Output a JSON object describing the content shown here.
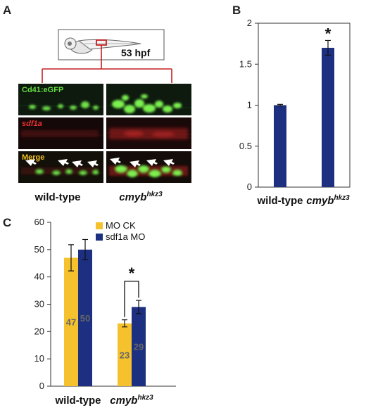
{
  "panel_a": {
    "label": "A",
    "stage": "53 hpf",
    "rows": [
      {
        "label": "Cd41:eGFP",
        "color": "#66dd44",
        "italic": false
      },
      {
        "label": "sdf1a",
        "color": "#ee3030",
        "italic": true
      },
      {
        "label": "Merge",
        "color": "#f0c020",
        "italic": false
      }
    ],
    "columns": [
      {
        "label": "wild-type",
        "italic": false,
        "sup": ""
      },
      {
        "label": "cmyb",
        "italic": true,
        "sup": "hkz3"
      }
    ]
  },
  "chart_data": [
    {
      "panel": "B",
      "type": "bar",
      "categories": [
        "wild-type",
        "cmyb"
      ],
      "category_sup": [
        "",
        "hkz3"
      ],
      "values": [
        1.0,
        1.7
      ],
      "errors": [
        0.01,
        0.09
      ],
      "ylim": [
        0,
        2
      ],
      "yticks": [
        "0",
        "0.5",
        "1",
        "1.5",
        "2"
      ],
      "ytick_values": [
        0,
        0.5,
        1,
        1.5,
        2
      ],
      "significance": [
        {
          "category": 1,
          "symbol": "*"
        }
      ],
      "colors": [
        "#1c2f80"
      ],
      "legend": "none"
    },
    {
      "panel": "C",
      "type": "bar",
      "categories": [
        "wild-type",
        "cmyb"
      ],
      "category_sup": [
        "",
        "hkz3"
      ],
      "series": [
        {
          "name": "MO CK",
          "values": [
            47,
            23
          ],
          "errors": [
            4.8,
            1.3
          ],
          "color": "#f5c22e"
        },
        {
          "name": "sdf1a MO",
          "values": [
            50,
            29
          ],
          "errors": [
            3.7,
            2.4
          ],
          "color": "#1c2f80"
        }
      ],
      "bar_labels": [
        [
          "47",
          "23"
        ],
        [
          "50",
          "29"
        ]
      ],
      "ylim": [
        0,
        60
      ],
      "yticks": [
        "0",
        "10",
        "20",
        "30",
        "40",
        "50",
        "60"
      ],
      "ytick_values": [
        0,
        10,
        20,
        30,
        40,
        50,
        60
      ],
      "significance": [
        {
          "category": 1,
          "symbol": "*"
        }
      ],
      "legend": "top-right"
    }
  ]
}
